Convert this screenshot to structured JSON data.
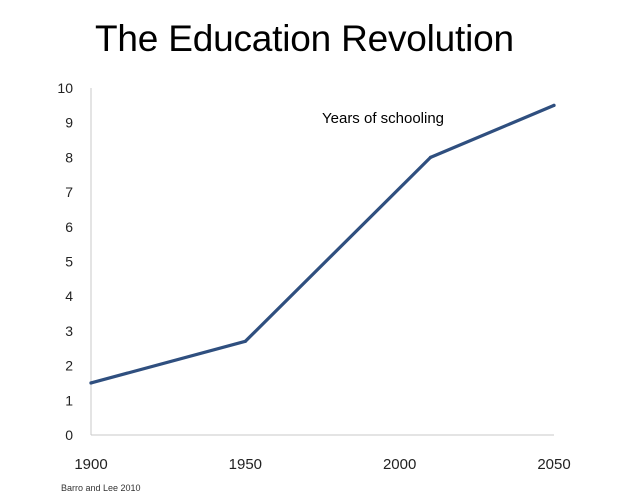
{
  "chart_data": {
    "type": "line",
    "title": "The Education Revolution",
    "xlabel": "",
    "ylabel": "",
    "x": [
      1900,
      1950,
      2010,
      2050
    ],
    "series": [
      {
        "values": [
          1.5,
          2.7,
          8.0,
          9.5
        ],
        "color": "#2f4f7f"
      }
    ],
    "xlim": [
      1900,
      2050
    ],
    "ylim": [
      0,
      10
    ],
    "x_ticks": [
      "1900",
      "1950",
      "2000",
      "2050"
    ],
    "x_tick_values": [
      1900,
      1950,
      2000,
      2050
    ],
    "y_ticks": [
      "0",
      "1",
      "2",
      "3",
      "4",
      "5",
      "6",
      "7",
      "8",
      "9",
      "10"
    ],
    "y_tick_values": [
      0,
      1,
      2,
      3,
      4,
      5,
      6,
      7,
      8,
      9,
      10
    ],
    "annotation": "Years of schooling",
    "source": "Barro and Lee 2010",
    "grid": false,
    "axis_color": "#c8c8c8"
  }
}
